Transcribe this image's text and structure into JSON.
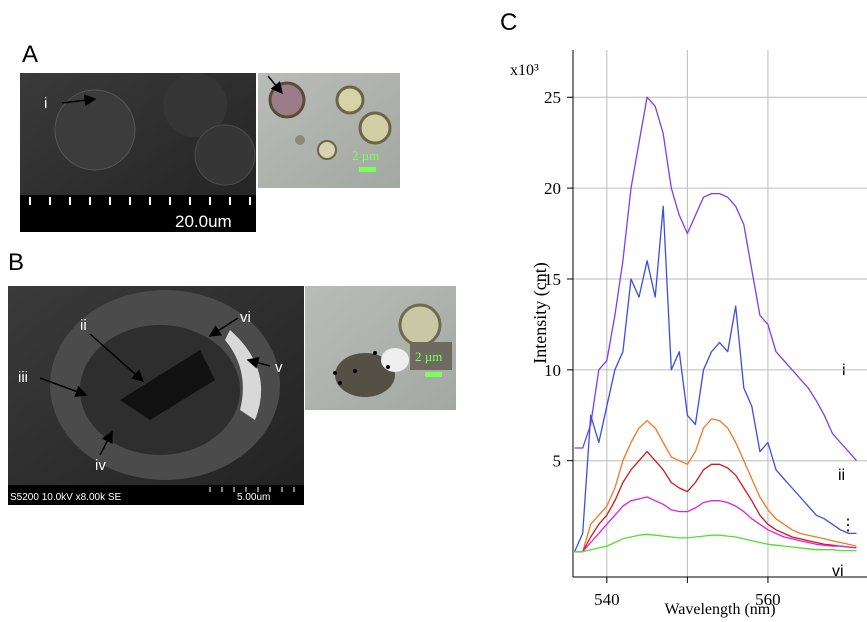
{
  "panels": {
    "a": {
      "letter": "A",
      "labels": [
        "i"
      ],
      "scale_bar": "20.0um",
      "optical_scale": "2 µm"
    },
    "b": {
      "letter": "B",
      "labels": [
        "ii",
        "iii",
        "iv",
        "v",
        "vi"
      ],
      "info": "S5200 10.0kV x8.00k SE",
      "scale_bar": "5.00um",
      "optical_scale": "2 µm"
    },
    "c": {
      "letter": "C"
    }
  },
  "chart_data": {
    "type": "line",
    "xlabel": "Wavelength (nm)",
    "ylabel": "Intensity (cnt)",
    "y_multiplier": "x10³",
    "x": [
      536,
      537,
      538,
      539,
      540,
      541,
      542,
      543,
      544,
      545,
      546,
      547,
      548,
      549,
      550,
      551,
      552,
      553,
      554,
      555,
      556,
      557,
      558,
      559,
      560,
      561,
      562,
      563,
      564,
      565,
      566,
      567,
      568,
      569,
      570,
      571
    ],
    "xlim": [
      535.8,
      572.3
    ],
    "ylim": [
      -1.4,
      27.6
    ],
    "xticks": [
      540,
      {
        "value": 550,
        "label": null
      },
      560
    ],
    "yticks": [
      5,
      10,
      15,
      20,
      25
    ],
    "grid": true,
    "annotations": [
      "⋮"
    ],
    "series": [
      {
        "name": "i",
        "color": "#7b3ff0",
        "values": [
          5.7,
          5.7,
          7,
          10,
          10.5,
          13,
          16,
          20,
          22.5,
          25,
          24.5,
          23,
          20,
          18.5,
          17.5,
          18.5,
          19.5,
          19.7,
          19.7,
          19.5,
          19,
          18,
          15.5,
          13,
          12.5,
          11,
          10.5,
          10,
          9.5,
          9,
          8.3,
          7.5,
          6.5,
          6,
          5.5,
          5
        ]
      },
      {
        "name": "ii",
        "color": "#3a4fe0",
        "values": [
          0,
          1,
          7.5,
          6,
          8,
          10,
          11,
          15,
          14,
          16,
          14,
          19,
          10,
          11,
          7.5,
          7,
          10,
          11,
          11.5,
          11,
          13.5,
          9,
          8,
          5.5,
          6,
          4.5,
          4,
          3.5,
          3,
          2.5,
          2,
          1.8,
          1.5,
          1.2,
          1,
          1
        ]
      },
      {
        "color": "#f07a20",
        "values": [
          0,
          0,
          1.5,
          2,
          2.5,
          3.5,
          5,
          6,
          6.8,
          7.2,
          6.8,
          6,
          5.2,
          5,
          4.8,
          5.5,
          6.8,
          7.3,
          7.2,
          6.8,
          6,
          5,
          4,
          3,
          2.3,
          1.8,
          1.5,
          1.2,
          1,
          0.9,
          0.8,
          0.7,
          0.6,
          0.5,
          0.4,
          0.3
        ]
      },
      {
        "color": "#d01818",
        "values": [
          0,
          0,
          0.8,
          1.5,
          2,
          2.8,
          3.8,
          4.5,
          5,
          5.5,
          5,
          4.5,
          3.8,
          3.5,
          3.3,
          3.8,
          4.5,
          4.8,
          4.8,
          4.6,
          4.2,
          3.5,
          2.8,
          2,
          1.5,
          1.2,
          1,
          0.8,
          0.7,
          0.6,
          0.5,
          0.4,
          0.35,
          0.3,
          0.25,
          0.2
        ]
      },
      {
        "color": "#e020e0",
        "values": [
          0,
          0,
          0.5,
          1,
          1.5,
          2,
          2.5,
          2.8,
          2.9,
          3,
          2.8,
          2.6,
          2.3,
          2.2,
          2.2,
          2.4,
          2.7,
          2.8,
          2.8,
          2.7,
          2.5,
          2.2,
          1.8,
          1.5,
          1.2,
          1,
          0.8,
          0.7,
          0.6,
          0.5,
          0.4,
          0.35,
          0.3,
          0.3,
          0.25,
          0.2
        ]
      },
      {
        "name": "vi",
        "color": "#50e030",
        "values": [
          0,
          0,
          0.1,
          0.2,
          0.3,
          0.5,
          0.7,
          0.8,
          0.9,
          0.95,
          0.9,
          0.85,
          0.8,
          0.75,
          0.75,
          0.8,
          0.85,
          0.9,
          0.9,
          0.85,
          0.8,
          0.7,
          0.6,
          0.5,
          0.4,
          0.35,
          0.3,
          0.25,
          0.2,
          0.15,
          0.1,
          0.1,
          0.1,
          0.05,
          0.05,
          0.05
        ]
      }
    ]
  }
}
